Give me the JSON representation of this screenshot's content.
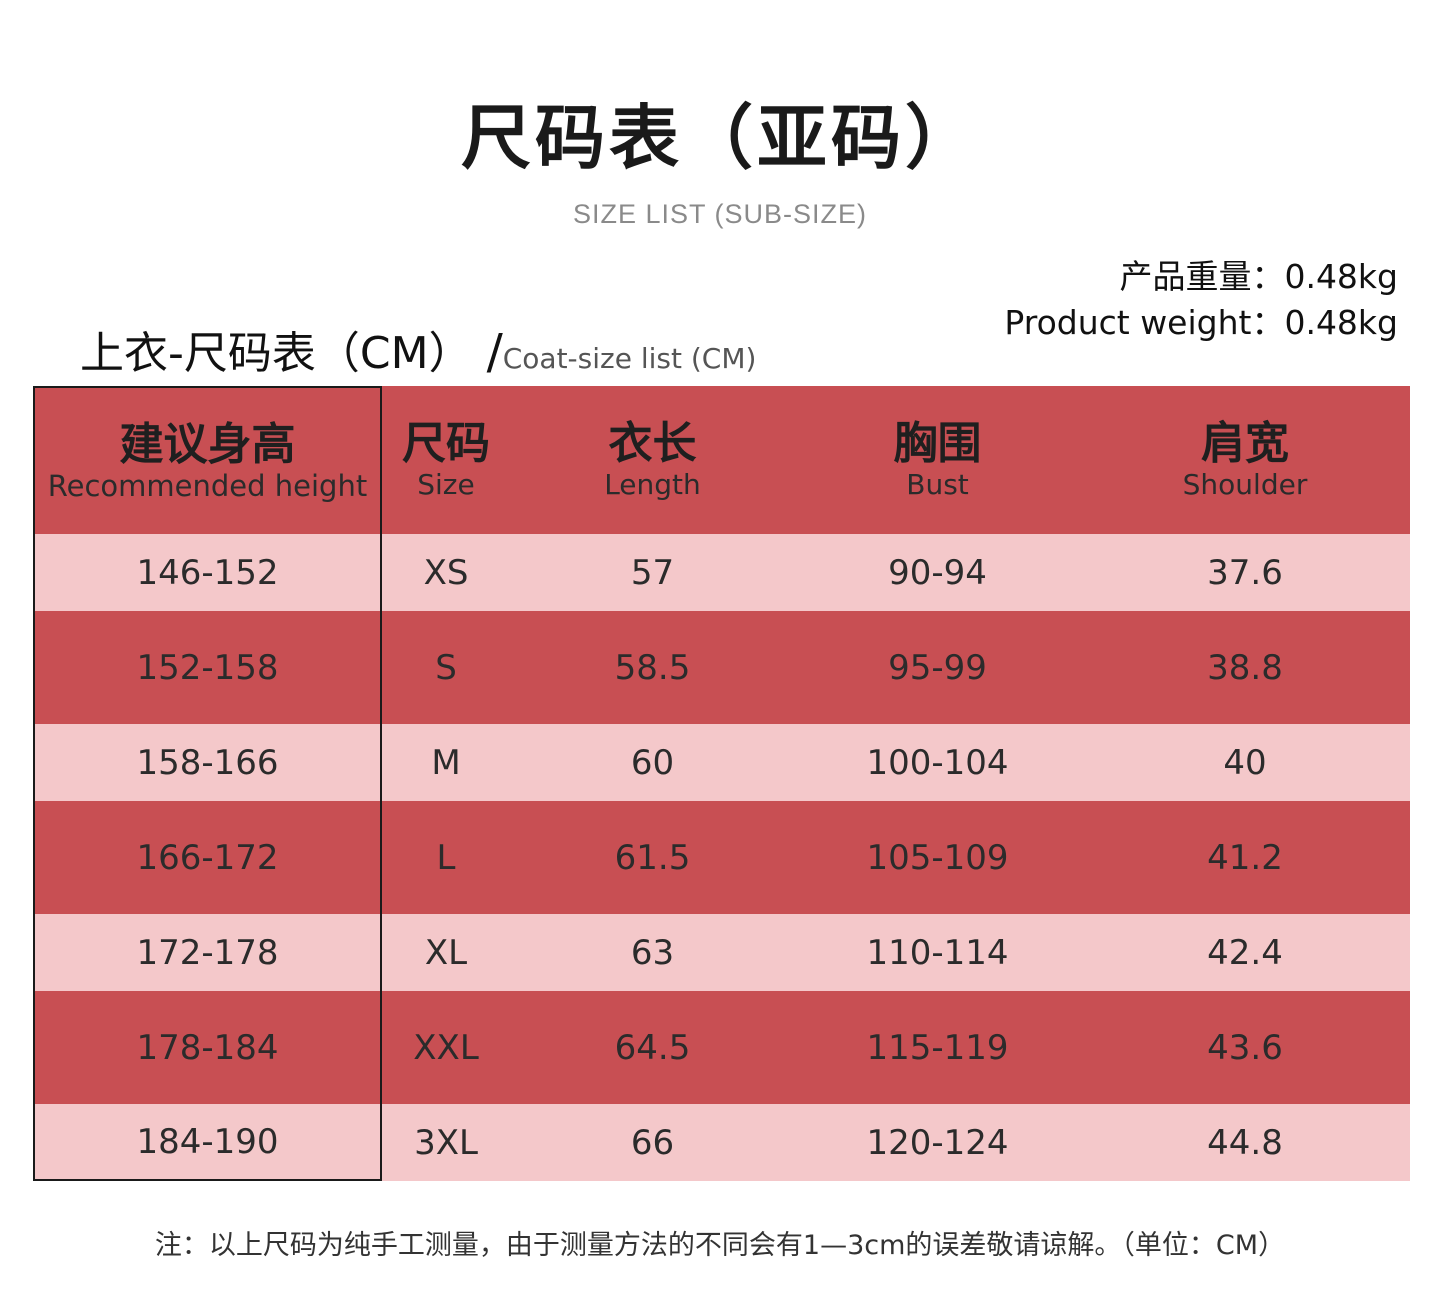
{
  "header": {
    "title": "尺码表（亚码）",
    "subtitle": "SIZE LIST (SUB-SIZE)"
  },
  "weight": {
    "cn": "产品重量：0.48kg",
    "en": "Product weight：0.48kg"
  },
  "table_heading": {
    "cn": "上衣-尺码表（CM）",
    "slash": "/",
    "en": "Coat-size list (CM)"
  },
  "columns": [
    {
      "cn": "建议身高",
      "en": "Recommended height"
    },
    {
      "cn": "尺码",
      "en": "Size"
    },
    {
      "cn": "衣长",
      "en": "Length"
    },
    {
      "cn": "胸围",
      "en": "Bust"
    },
    {
      "cn": "肩宽",
      "en": "Shoulder"
    }
  ],
  "rows": [
    [
      "146-152",
      "XS",
      "57",
      "90-94",
      "37.6"
    ],
    [
      "152-158",
      "S",
      "58.5",
      "95-99",
      "38.8"
    ],
    [
      "158-166",
      "M",
      "60",
      "100-104",
      "40"
    ],
    [
      "166-172",
      "L",
      "61.5",
      "105-109",
      "41.2"
    ],
    [
      "172-178",
      "XL",
      "63",
      "110-114",
      "42.4"
    ],
    [
      "178-184",
      "XXL",
      "64.5",
      "115-119",
      "43.6"
    ],
    [
      "184-190",
      "3XL",
      "66",
      "120-124",
      "44.8"
    ]
  ],
  "note": "注：以上尺码为纯手工测量，由于测量方法的不同会有1—3cm的误差敬请谅解。（单位：CM）",
  "colors": {
    "header_row": "#c84f53",
    "dark_row": "#c84f53",
    "light_row": "#f4c8ca"
  }
}
